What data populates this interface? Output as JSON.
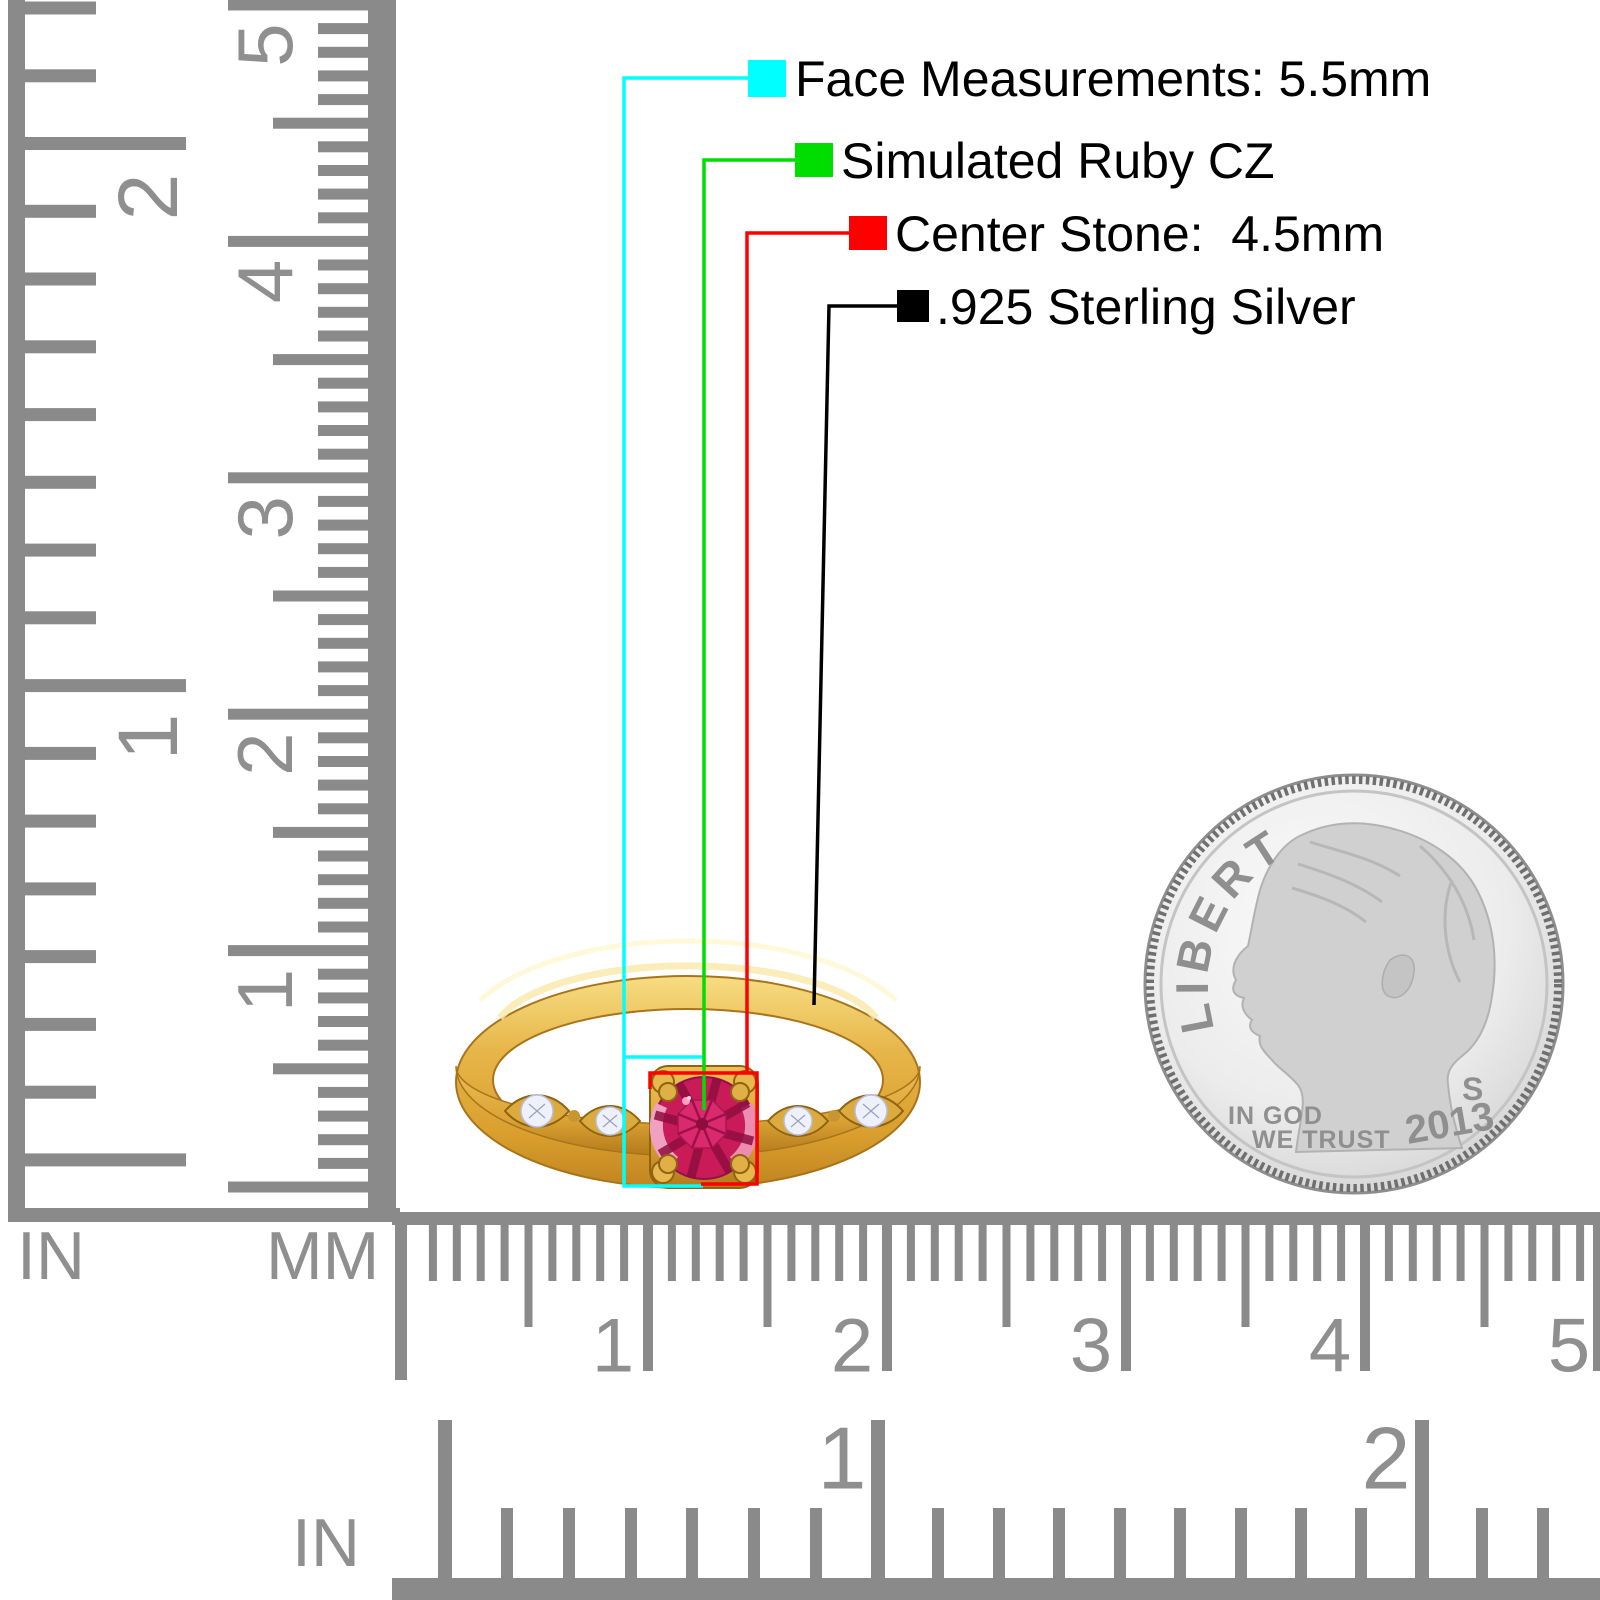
{
  "annotations": {
    "items": [
      {
        "id": "face-measurement",
        "color": "#00ffff",
        "label": "Face Measurements: 5.5mm"
      },
      {
        "id": "stone-material",
        "color": "#00dd00",
        "label": "Simulated Ruby CZ"
      },
      {
        "id": "center-stone",
        "color": "#ff0000",
        "label": "Center Stone:  4.5mm"
      },
      {
        "id": "metal",
        "color": "#000000",
        "label": ".925 Sterling Silver"
      }
    ]
  },
  "rulers": {
    "left_inch": {
      "unit_label": "IN",
      "numbers": [
        "2",
        "1"
      ]
    },
    "left_mm": {
      "unit_label": "MM",
      "numbers": [
        "5",
        "4",
        "3",
        "2",
        "1"
      ]
    },
    "bottom_mm": {
      "numbers": [
        "1",
        "2",
        "3",
        "4",
        "5"
      ]
    },
    "bottom_inch": {
      "unit_label": "IN",
      "numbers": [
        "1",
        "2"
      ]
    }
  },
  "coin": {
    "legend": "LIBERTY",
    "motto_line1": "IN GOD",
    "motto_line2": "WE TRUST",
    "mint_mark": "S",
    "year": "2013"
  },
  "colors": {
    "ruler_gray": "#8a8a8a",
    "number_gray": "#8f8f8f",
    "gold": "#e2aa3e",
    "ruby": "#c81b58",
    "accent_stone": "#eef0fb",
    "coin_silver": "#e9e9e9"
  }
}
